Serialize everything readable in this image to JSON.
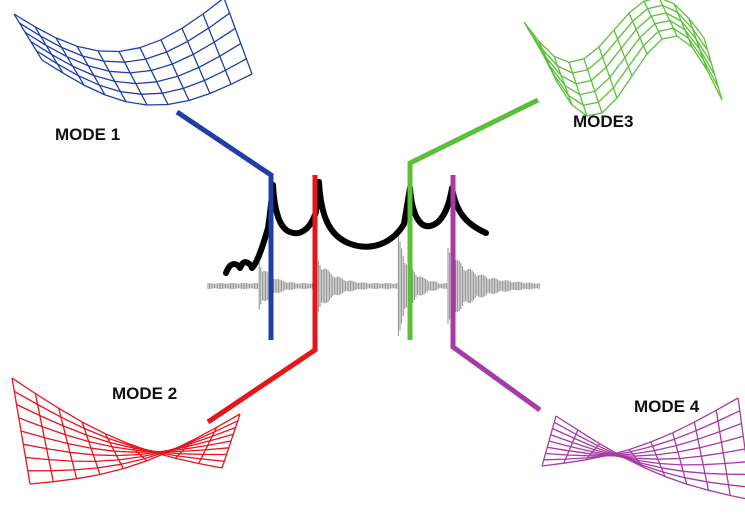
{
  "colors": {
    "mode_1": "#1f3fa8",
    "mode_2": "#e8141c",
    "mode_3": "#5cbf3a",
    "mode_4": "#a63aa6",
    "frf_curve": "#000000",
    "time_signal": "#8c8c8c",
    "label_text": "#111111"
  },
  "modes": [
    {
      "label": "MODE 1",
      "color_key": "mode_1",
      "icon": "mode-shape-1-wireframe-icon"
    },
    {
      "label": "MODE 2",
      "color_key": "mode_2",
      "icon": "mode-shape-2-wireframe-icon"
    },
    {
      "label": "MODE3",
      "color_key": "mode_3",
      "icon": "mode-shape-3-wireframe-icon"
    },
    {
      "label": "MODE 4",
      "color_key": "mode_4",
      "icon": "mode-shape-4-wireframe-icon"
    }
  ]
}
